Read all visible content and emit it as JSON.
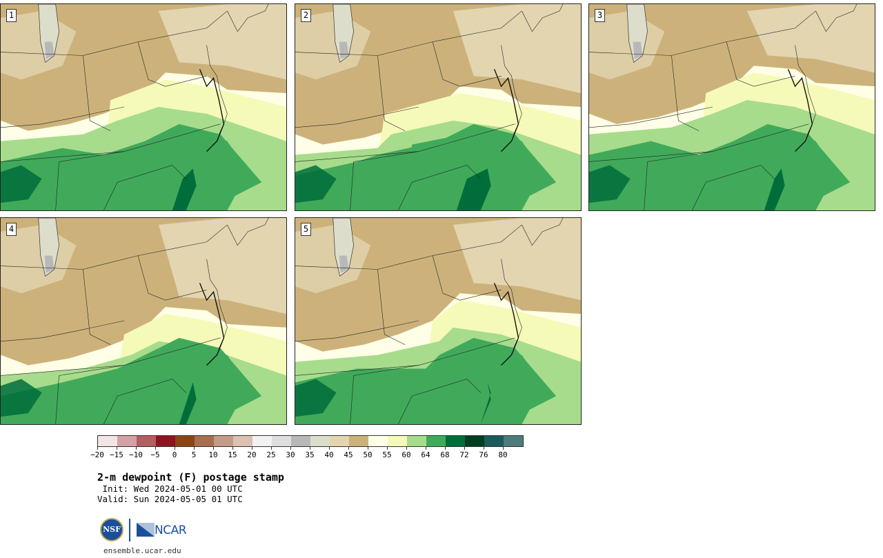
{
  "panels": [
    {
      "label": "1",
      "variant": 0
    },
    {
      "label": "2",
      "variant": 1
    },
    {
      "label": "3",
      "variant": 2
    },
    {
      "label": "4",
      "variant": 3
    },
    {
      "label": "5",
      "variant": 4
    }
  ],
  "colorbar": {
    "colors": [
      "#f3e5e5",
      "#d4a1a4",
      "#b25e63",
      "#8c1522",
      "#8b4513",
      "#a86f4f",
      "#c49b84",
      "#dcc0b2",
      "#f2f2f2",
      "#dedede",
      "#b8b8b8",
      "#ddddcb",
      "#e2d5b0",
      "#ccb27a",
      "#fffee6",
      "#f5fab9",
      "#a7dc8c",
      "#40aa5a",
      "#006d3b",
      "#003d22",
      "#1d5a5b",
      "#4d7b7c"
    ],
    "ticks": [
      "−20",
      "−15",
      "−10",
      "−5",
      "0",
      "5",
      "10",
      "15",
      "20",
      "25",
      "30",
      "35",
      "40",
      "45",
      "50",
      "55",
      "60",
      "64",
      "68",
      "72",
      "76",
      "80"
    ]
  },
  "title": "2-m dewpoint (F) postage stamp",
  "init": " Init: Wed 2024-05-01 00 UTC",
  "valid": "Valid: Sun 2024-05-05 01 UTC",
  "logo": {
    "nsf_text": "NSF",
    "ncar_text": "NCAR",
    "url": "ensemble.ucar.edu"
  }
}
